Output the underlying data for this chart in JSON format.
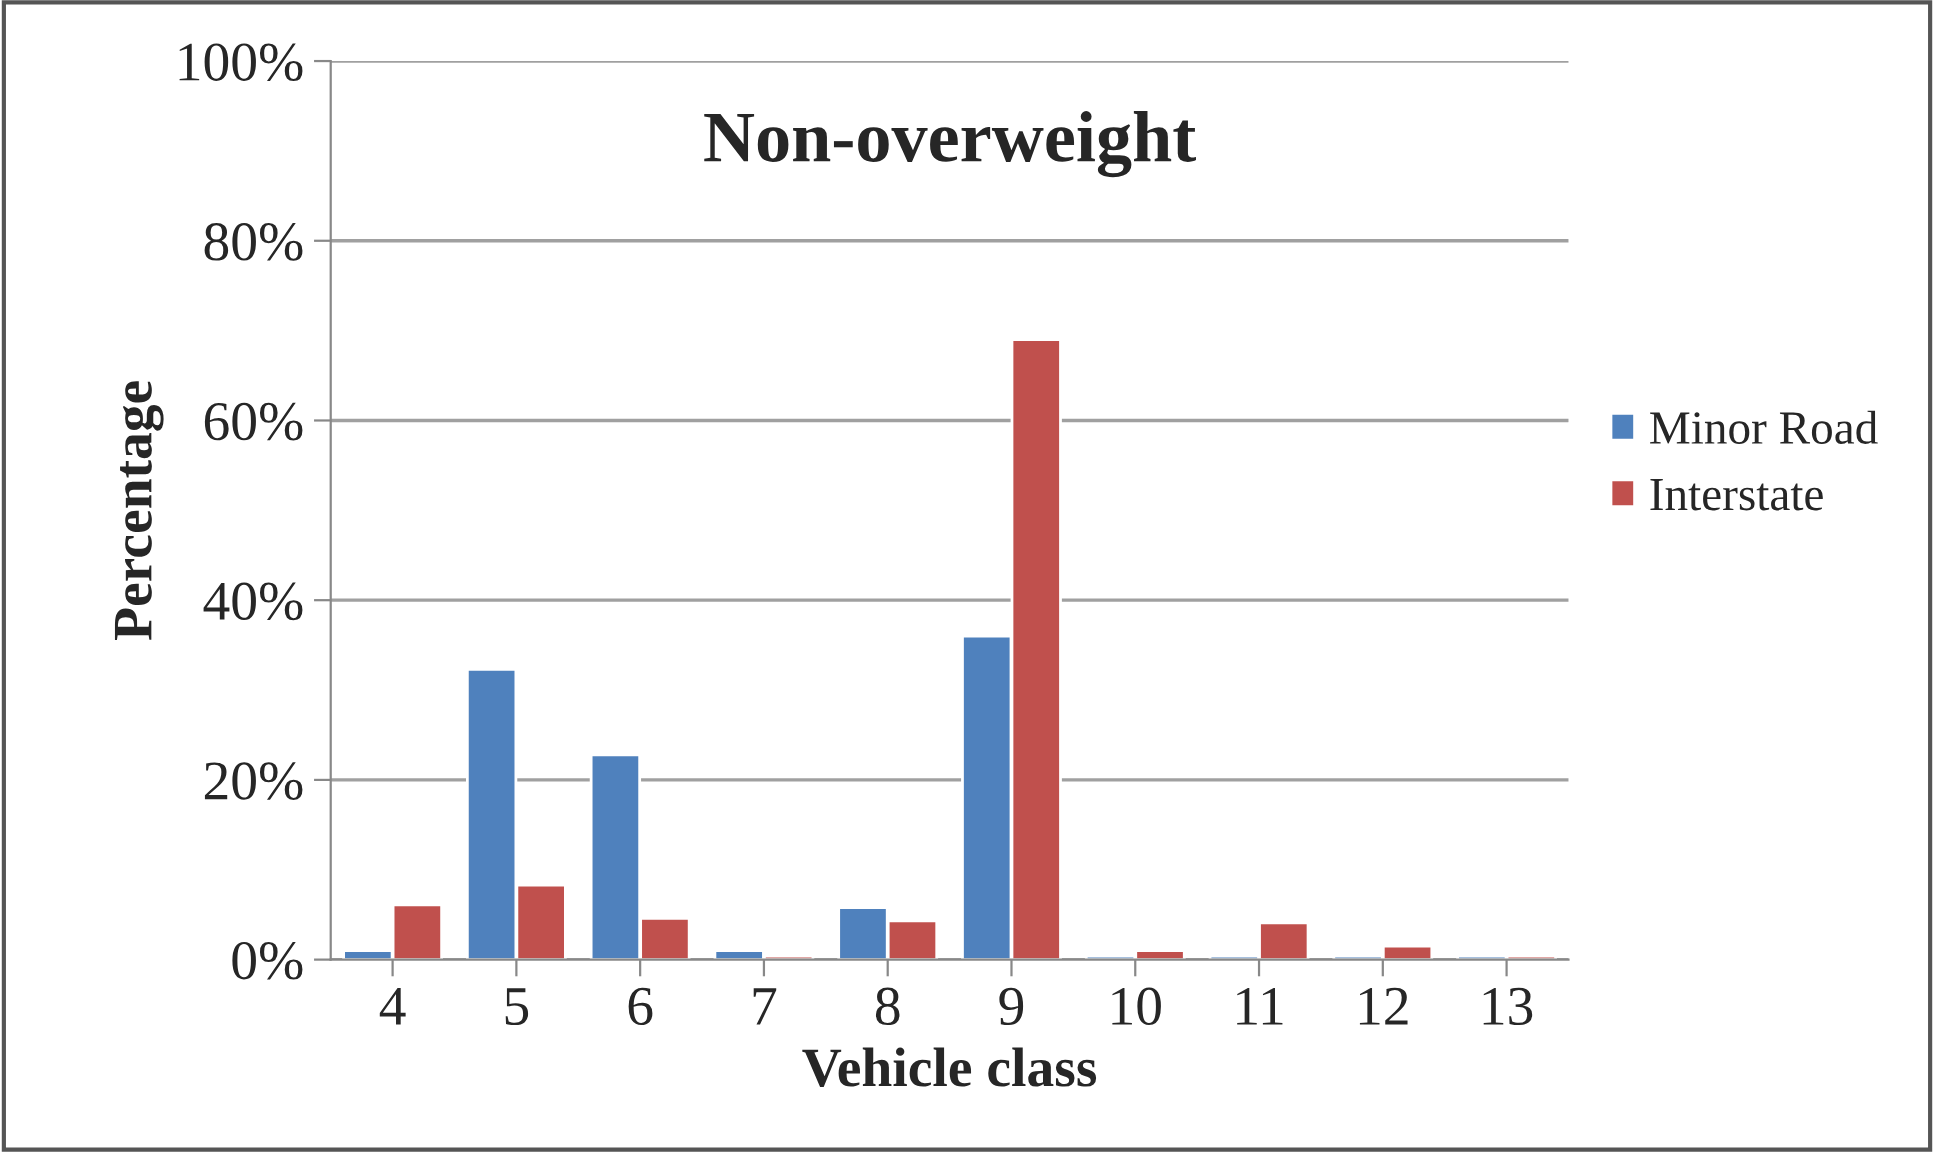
{
  "chart_data": {
    "type": "bar",
    "title": "Non-overweight",
    "xlabel": "Vehicle class",
    "ylabel": "Percentage",
    "categories": [
      "4",
      "5",
      "6",
      "7",
      "8",
      "9",
      "10",
      "11",
      "12",
      "13"
    ],
    "series": [
      {
        "name": "Minor Road",
        "color": "#4f81bd",
        "values": [
          1.0,
          32.3,
          22.8,
          1.0,
          5.8,
          36.0,
          0.4,
          0.4,
          0.4,
          0.4
        ]
      },
      {
        "name": "Interstate",
        "color": "#c0504d",
        "values": [
          6.1,
          8.3,
          4.6,
          0.4,
          4.3,
          69.0,
          1.0,
          4.1,
          1.5,
          0.4
        ]
      }
    ],
    "ylim": [
      0,
      100
    ],
    "yticks": [
      {
        "value": 0,
        "label": "0%"
      },
      {
        "value": 20,
        "label": "20%"
      },
      {
        "value": 40,
        "label": "40%"
      },
      {
        "value": 60,
        "label": "60%"
      },
      {
        "value": 80,
        "label": "80%"
      },
      {
        "value": 100,
        "label": "100%"
      }
    ],
    "grid": "y",
    "legend": "right"
  }
}
